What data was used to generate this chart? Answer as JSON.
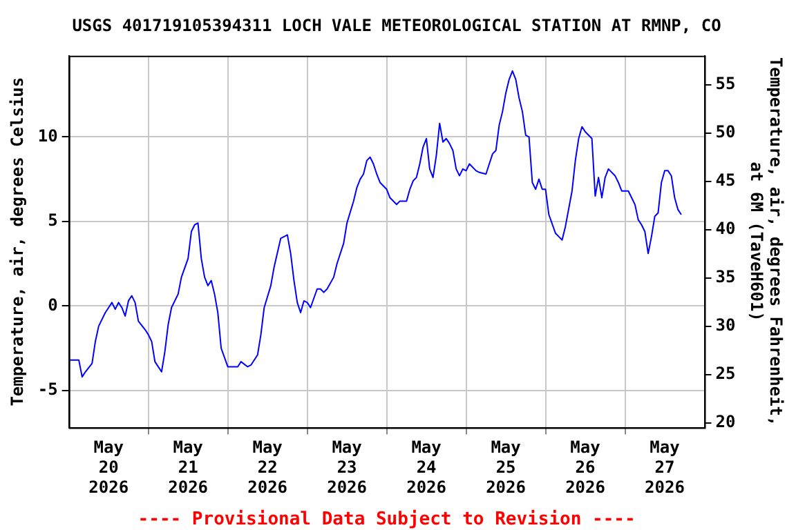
{
  "chart_data": {
    "type": "line",
    "title": "USGS 401719105394311 LOCH VALE METEOROLOGICAL STATION AT RMNP, CO",
    "ylabel": "Temperature, air, degrees Celsius",
    "y2label": "Temperature, air, degrees Fahrenheit,\nat 6M (TaveH601)",
    "annotations": [
      "---- Provisional Data Subject to Revision ----"
    ],
    "x": [
      "2026-05-20T00:00",
      "2026-05-20T03:00",
      "2026-05-20T04:00",
      "2026-05-20T05:00",
      "2026-05-20T07:00",
      "2026-05-20T08:00",
      "2026-05-20T09:00",
      "2026-05-20T11:00",
      "2026-05-20T12:00",
      "2026-05-20T13:00",
      "2026-05-20T14:00",
      "2026-05-20T15:00",
      "2026-05-20T16:00",
      "2026-05-20T17:00",
      "2026-05-20T18:00",
      "2026-05-20T19:00",
      "2026-05-20T20:00",
      "2026-05-20T21:00",
      "2026-05-20T23:00",
      "2026-05-21T00:00",
      "2026-05-21T01:00",
      "2026-05-21T02:00",
      "2026-05-21T04:00",
      "2026-05-21T05:00",
      "2026-05-21T06:00",
      "2026-05-21T07:00",
      "2026-05-21T09:00",
      "2026-05-21T10:00",
      "2026-05-21T12:00",
      "2026-05-21T13:00",
      "2026-05-21T14:00",
      "2026-05-21T15:00",
      "2026-05-21T16:00",
      "2026-05-21T17:00",
      "2026-05-21T18:00",
      "2026-05-21T19:00",
      "2026-05-21T20:00",
      "2026-05-21T21:00",
      "2026-05-21T22:00",
      "2026-05-22T00:00",
      "2026-05-22T01:00",
      "2026-05-22T03:00",
      "2026-05-22T04:00",
      "2026-05-22T06:00",
      "2026-05-22T07:00",
      "2026-05-22T09:00",
      "2026-05-22T10:00",
      "2026-05-22T11:00",
      "2026-05-22T13:00",
      "2026-05-22T14:00",
      "2026-05-22T16:00",
      "2026-05-22T17:00",
      "2026-05-22T18:00",
      "2026-05-22T19:00",
      "2026-05-22T20:00",
      "2026-05-22T21:00",
      "2026-05-22T22:00",
      "2026-05-22T23:00",
      "2026-05-23T00:00",
      "2026-05-23T01:00",
      "2026-05-23T03:00",
      "2026-05-23T04:00",
      "2026-05-23T05:00",
      "2026-05-23T06:00",
      "2026-05-23T08:00",
      "2026-05-23T09:00",
      "2026-05-23T11:00",
      "2026-05-23T12:00",
      "2026-05-23T14:00",
      "2026-05-23T15:00",
      "2026-05-23T16:00",
      "2026-05-23T17:00",
      "2026-05-23T18:00",
      "2026-05-23T19:00",
      "2026-05-23T20:00",
      "2026-05-23T21:00",
      "2026-05-23T22:00",
      "2026-05-24T00:00",
      "2026-05-24T01:00",
      "2026-05-24T03:00",
      "2026-05-24T04:00",
      "2026-05-24T06:00",
      "2026-05-24T07:00",
      "2026-05-24T08:00",
      "2026-05-24T09:00",
      "2026-05-24T10:00",
      "2026-05-24T11:00",
      "2026-05-24T12:00",
      "2026-05-24T13:00",
      "2026-05-24T14:00",
      "2026-05-24T15:00",
      "2026-05-24T16:00",
      "2026-05-24T17:00",
      "2026-05-24T18:00",
      "2026-05-24T19:00",
      "2026-05-24T20:00",
      "2026-05-24T21:00",
      "2026-05-24T22:00",
      "2026-05-24T23:00",
      "2026-05-25T00:00",
      "2026-05-25T01:00",
      "2026-05-25T03:00",
      "2026-05-25T04:00",
      "2026-05-25T06:00",
      "2026-05-25T07:00",
      "2026-05-25T08:00",
      "2026-05-25T09:00",
      "2026-05-25T10:00",
      "2026-05-25T11:00",
      "2026-05-25T12:00",
      "2026-05-25T13:00",
      "2026-05-25T14:00",
      "2026-05-25T15:00",
      "2026-05-25T16:00",
      "2026-05-25T17:00",
      "2026-05-25T18:00",
      "2026-05-25T19:00",
      "2026-05-25T20:00",
      "2026-05-25T21:00",
      "2026-05-25T22:00",
      "2026-05-25T23:00",
      "2026-05-26T00:00",
      "2026-05-26T01:00",
      "2026-05-26T03:00",
      "2026-05-26T04:00",
      "2026-05-26T05:00",
      "2026-05-26T06:00",
      "2026-05-26T08:00",
      "2026-05-26T09:00",
      "2026-05-26T10:00",
      "2026-05-26T11:00",
      "2026-05-26T12:00",
      "2026-05-26T14:00",
      "2026-05-26T15:00",
      "2026-05-26T16:00",
      "2026-05-26T17:00",
      "2026-05-26T18:00",
      "2026-05-26T19:00",
      "2026-05-26T21:00",
      "2026-05-26T22:00",
      "2026-05-26T23:00",
      "2026-05-27T01:00",
      "2026-05-27T02:00",
      "2026-05-27T03:00",
      "2026-05-27T04:00",
      "2026-05-27T05:00",
      "2026-05-27T06:00",
      "2026-05-27T07:00",
      "2026-05-27T08:00",
      "2026-05-27T09:00",
      "2026-05-27T10:00",
      "2026-05-27T11:00",
      "2026-05-27T12:00",
      "2026-05-27T13:00",
      "2026-05-27T14:00",
      "2026-05-27T15:00",
      "2026-05-27T16:00",
      "2026-05-27T17:00"
    ],
    "series": [
      {
        "color": "#0000ff",
        "values": [
          -3.2,
          -3.2,
          -4.2,
          -3.9,
          -3.4,
          -2.1,
          -1.2,
          -0.4,
          -0.1,
          0.2,
          -0.2,
          0.2,
          -0.1,
          -0.6,
          0.3,
          0.6,
          0.2,
          -0.9,
          -1.4,
          -1.7,
          -2.1,
          -3.3,
          -3.9,
          -2.7,
          -1.1,
          -0.1,
          0.7,
          1.7,
          2.8,
          4.4,
          4.8,
          4.9,
          2.8,
          1.7,
          1.2,
          1.5,
          0.7,
          -0.4,
          -2.5,
          -3.6,
          -3.6,
          -3.6,
          -3.3,
          -3.6,
          -3.5,
          -2.9,
          -1.7,
          -0.1,
          1.2,
          2.3,
          4.0,
          4.1,
          4.2,
          3.1,
          1.5,
          0.2,
          -0.4,
          0.3,
          0.2,
          -0.1,
          1.0,
          1.0,
          0.8,
          1.0,
          1.7,
          2.5,
          3.7,
          4.9,
          6.2,
          7.0,
          7.5,
          7.8,
          8.6,
          8.8,
          8.4,
          7.8,
          7.3,
          6.9,
          6.4,
          6.0,
          6.2,
          6.2,
          6.9,
          7.4,
          7.6,
          8.4,
          9.4,
          9.9,
          8.1,
          7.6,
          8.9,
          10.8,
          9.7,
          9.9,
          9.6,
          9.2,
          8.1,
          7.7,
          8.1,
          8.0,
          8.4,
          8.0,
          7.9,
          7.8,
          8.4,
          9.0,
          9.2,
          10.7,
          11.5,
          12.6,
          13.4,
          13.9,
          13.4,
          12.3,
          11.5,
          10.1,
          10.0,
          7.3,
          6.9,
          7.5,
          6.9,
          6.9,
          5.4,
          4.3,
          4.1,
          3.9,
          4.7,
          6.8,
          8.6,
          9.9,
          10.6,
          10.3,
          9.9,
          6.5,
          7.6,
          6.4,
          7.6,
          8.1,
          7.7,
          7.3,
          6.8,
          6.8,
          6.4,
          6.0,
          5.1,
          4.8,
          4.4,
          3.1,
          4.1,
          5.3,
          5.5,
          7.3,
          8.0,
          8.0,
          7.7,
          6.4,
          5.7,
          5.4
        ]
      }
    ],
    "xlim": [
      "2026-05-20T00:00",
      "2026-05-28T00:00"
    ],
    "xticks": [
      {
        "value": "2026-05-20T12:00",
        "label": "May\n20\n2026"
      },
      {
        "value": "2026-05-21T00:00",
        "label": null
      },
      {
        "value": "2026-05-21T12:00",
        "label": "May\n21\n2026"
      },
      {
        "value": "2026-05-22T00:00",
        "label": null
      },
      {
        "value": "2026-05-22T12:00",
        "label": "May\n22\n2026"
      },
      {
        "value": "2026-05-23T00:00",
        "label": null
      },
      {
        "value": "2026-05-23T12:00",
        "label": "May\n23\n2026"
      },
      {
        "value": "2026-05-24T00:00",
        "label": null
      },
      {
        "value": "2026-05-24T12:00",
        "label": "May\n24\n2026"
      },
      {
        "value": "2026-05-25T00:00",
        "label": null
      },
      {
        "value": "2026-05-25T12:00",
        "label": "May\n25\n2026"
      },
      {
        "value": "2026-05-26T00:00",
        "label": null
      },
      {
        "value": "2026-05-26T12:00",
        "label": "May\n26\n2026"
      },
      {
        "value": "2026-05-27T00:00",
        "label": null
      },
      {
        "value": "2026-05-27T12:00",
        "label": "May\n27\n2026"
      }
    ],
    "ylim": [
      -7.2,
      14.8
    ],
    "yticks": [
      -5,
      0,
      5,
      10
    ],
    "y2lim": [
      19.5,
      58
    ],
    "y2ticks": [
      20,
      25,
      30,
      35,
      40,
      45,
      50,
      55
    ],
    "grid": true,
    "legend": false
  }
}
